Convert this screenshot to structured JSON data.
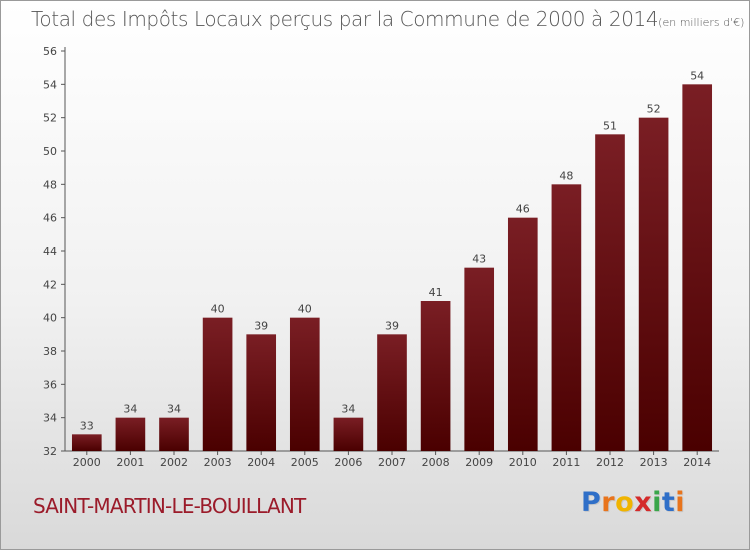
{
  "chart_data": {
    "type": "bar",
    "title": "Total des Impôts Locaux perçus par la Commune de 2000 à 2014",
    "unit_note": "(en milliers d'€)",
    "categories": [
      "2000",
      "2001",
      "2002",
      "2003",
      "2004",
      "2005",
      "2006",
      "2007",
      "2008",
      "2009",
      "2010",
      "2011",
      "2012",
      "2013",
      "2014"
    ],
    "values": [
      33,
      34,
      34,
      40,
      39,
      40,
      34,
      39,
      41,
      43,
      46,
      48,
      51,
      52,
      54
    ],
    "ylim": [
      32,
      56
    ],
    "yticks": [
      32,
      34,
      36,
      38,
      40,
      42,
      44,
      46,
      48,
      50,
      52,
      54,
      56
    ],
    "xlabel": "",
    "ylabel": "",
    "grid": false,
    "bar_color": "#7a1e24",
    "bar_color_dark": "#4a0000"
  },
  "commune": "SAINT-MARTIN-LE-BOUILLANT",
  "brand": {
    "letters": [
      "P",
      "r",
      "o",
      "x",
      "i",
      "t",
      "i"
    ],
    "colors": [
      "#2f6fc8",
      "#e8741c",
      "#f0b400",
      "#d42a2a",
      "#3aa64a",
      "#2f6fc8",
      "#e8741c"
    ]
  }
}
